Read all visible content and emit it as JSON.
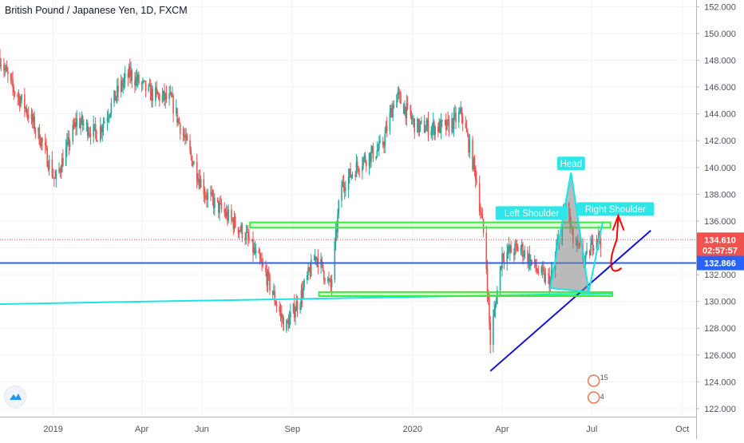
{
  "chart_title": "British Pound / Japanese Yen, 1D, FXCM",
  "colors": {
    "up": "#26a69a",
    "down": "#ef5350",
    "support_zone": "#3ce93c",
    "trend_cyan": "#1ee3e6",
    "trend_blue": "#1414d2",
    "h_line": "#2962ff",
    "price_tag": "#ef5350",
    "label_bg": "#2ee5e8",
    "hs_fill": "#9a9a9a",
    "arrow": "#ff0000"
  },
  "icons": {
    "logo": "tradingview-logo-icon",
    "event_markers": "earnings-event-icon"
  },
  "price_tags": {
    "last_price": "134.610",
    "countdown": "02:57:57",
    "h_line_price": "132.866"
  },
  "event_markers": {
    "first_count": "15",
    "second_count": "4"
  },
  "annotations": {
    "head": "Head",
    "left_shoulder": "Left Shoulder",
    "right_shoulder": "Right Shoulder"
  },
  "chart_data": {
    "type": "candlestick",
    "title": "British Pound / Japanese Yen, 1D, FXCM",
    "x_tick_labels": [
      "2019",
      "Apr",
      "Jun",
      "Sep",
      "2020",
      "Apr",
      "Jul",
      "Oct"
    ],
    "y_tick_labels": [
      "122.000",
      "124.000",
      "126.000",
      "128.000",
      "130.000",
      "132.000",
      "134.000",
      "136.000",
      "138.000",
      "140.000",
      "142.000",
      "144.000",
      "146.000",
      "148.000",
      "150.000",
      "152.000"
    ],
    "ylim": [
      121.4,
      152.5
    ],
    "x_range": [
      "2018-11-08",
      "2020-10-15"
    ],
    "approx_close_path": [
      {
        "date": "2018-11-08",
        "close": 148.2
      },
      {
        "date": "2018-11-20",
        "close": 146.0
      },
      {
        "date": "2018-12-03",
        "close": 144.6
      },
      {
        "date": "2018-12-20",
        "close": 142.0
      },
      {
        "date": "2019-01-03",
        "close": 139.0
      },
      {
        "date": "2019-01-25",
        "close": 143.5
      },
      {
        "date": "2019-02-15",
        "close": 142.5
      },
      {
        "date": "2019-03-10",
        "close": 146.0
      },
      {
        "date": "2019-03-20",
        "close": 147.0
      },
      {
        "date": "2019-04-10",
        "close": 145.5
      },
      {
        "date": "2019-05-01",
        "close": 145.0
      },
      {
        "date": "2019-05-20",
        "close": 141.0
      },
      {
        "date": "2019-06-05",
        "close": 138.0
      },
      {
        "date": "2019-06-25",
        "close": 136.5
      },
      {
        "date": "2019-07-15",
        "close": 135.0
      },
      {
        "date": "2019-08-05",
        "close": 132.0
      },
      {
        "date": "2019-08-25",
        "close": 128.0
      },
      {
        "date": "2019-09-10",
        "close": 130.5
      },
      {
        "date": "2019-09-25",
        "close": 133.5
      },
      {
        "date": "2019-10-10",
        "close": 131.0
      },
      {
        "date": "2019-10-20",
        "close": 138.5
      },
      {
        "date": "2019-11-10",
        "close": 140.5
      },
      {
        "date": "2019-12-01",
        "close": 141.5
      },
      {
        "date": "2019-12-15",
        "close": 145.5
      },
      {
        "date": "2020-01-05",
        "close": 143.0
      },
      {
        "date": "2020-02-05",
        "close": 143.0
      },
      {
        "date": "2020-02-20",
        "close": 144.0
      },
      {
        "date": "2020-03-05",
        "close": 139.5
      },
      {
        "date": "2020-03-15",
        "close": 134.0
      },
      {
        "date": "2020-03-20",
        "close": 127.0
      },
      {
        "date": "2020-04-01",
        "close": 133.5
      },
      {
        "date": "2020-04-20",
        "close": 134.0
      },
      {
        "date": "2020-05-10",
        "close": 132.0
      },
      {
        "date": "2020-05-20",
        "close": 131.5
      },
      {
        "date": "2020-06-05",
        "close": 137.5
      },
      {
        "date": "2020-06-12",
        "close": 134.5
      },
      {
        "date": "2020-06-25",
        "close": 133.0
      },
      {
        "date": "2020-07-05",
        "close": 135.0
      },
      {
        "date": "2020-07-10",
        "close": 134.6
      }
    ],
    "annotations": [
      {
        "text": "Left Shoulder",
        "date": "2020-05-01",
        "price": 136.6
      },
      {
        "text": "Head",
        "date": "2020-06-10",
        "price": 140.3
      },
      {
        "text": "Right Shoulder",
        "date": "2020-07-25",
        "price": 136.9
      }
    ],
    "support_zones": [
      {
        "from": "2019-07-20",
        "to": "2020-07-20",
        "low": 135.5,
        "high": 135.9
      },
      {
        "from": "2019-09-28",
        "to": "2020-07-22",
        "low": 130.4,
        "high": 130.7
      }
    ],
    "trend_lines": [
      {
        "name": "cyan",
        "from": {
          "date": "2018-11-08",
          "price": 129.8
        },
        "to": {
          "date": "2020-07-22",
          "price": 130.6
        }
      },
      {
        "name": "blue",
        "from": {
          "date": "2020-03-20",
          "price": 124.8
        },
        "to": {
          "date": "2020-08-30",
          "price": 135.3
        }
      }
    ],
    "horizontal_line": {
      "price": 132.866
    },
    "last_price": 134.61
  }
}
